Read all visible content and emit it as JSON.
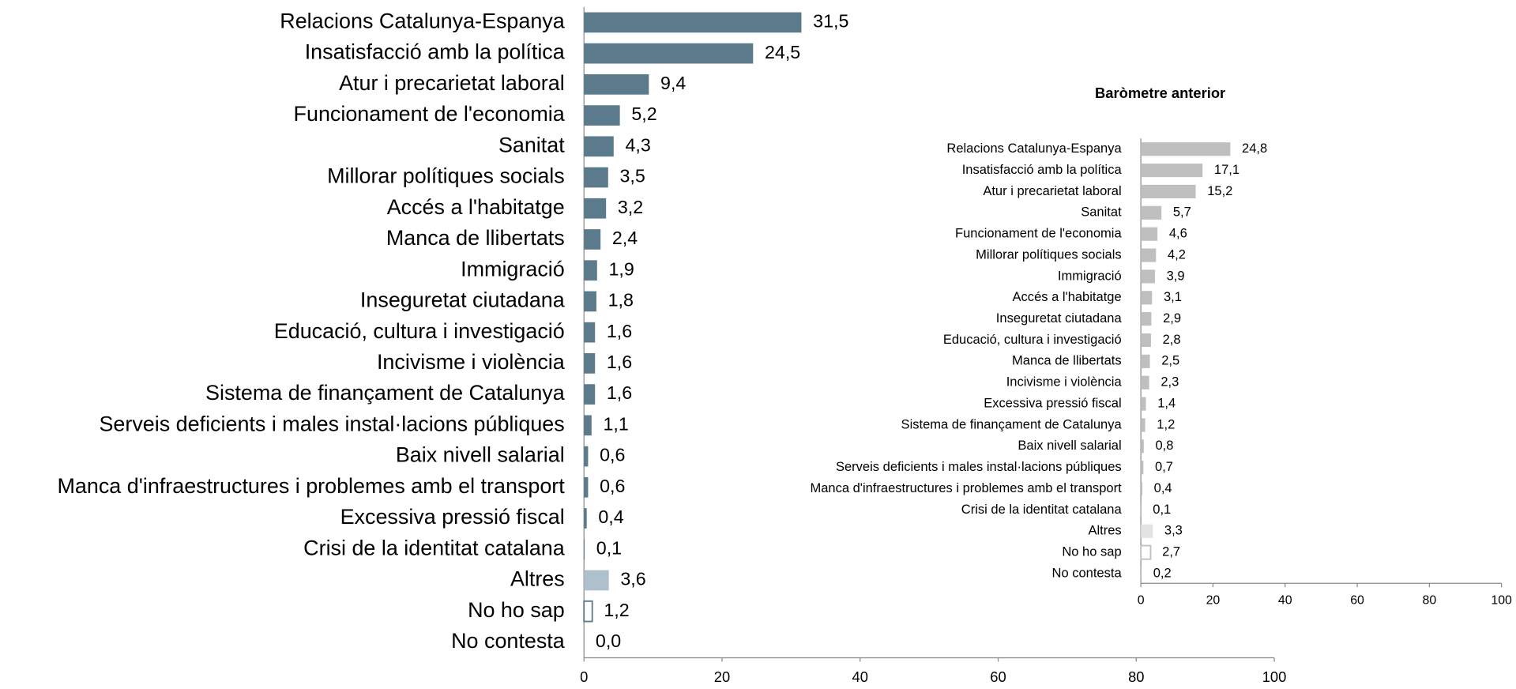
{
  "chart_data": [
    {
      "type": "bar",
      "orientation": "horizontal",
      "categories": [
        "Relacions Catalunya-Espanya",
        "Insatisfacció amb la política",
        "Atur i precarietat laboral",
        "Funcionament de l'economia",
        "Sanitat",
        "Millorar polítiques socials",
        "Accés a l'habitatge",
        "Manca de llibertats",
        "Immigració",
        "Inseguretat ciutadana",
        "Educació, cultura i investigació",
        "Incivisme i violència",
        "Sistema de finançament de Catalunya",
        "Serveis deficients i males instal·lacions públiques",
        "Baix nivell salarial",
        "Manca d'infraestructures i problemes amb el transport",
        "Excessiva pressió fiscal",
        "Crisi de la identitat catalana",
        "Altres",
        "No ho sap",
        "No contesta"
      ],
      "values": [
        31.5,
        24.5,
        9.4,
        5.2,
        4.3,
        3.5,
        3.2,
        2.4,
        1.9,
        1.8,
        1.6,
        1.6,
        1.6,
        1.1,
        0.6,
        0.6,
        0.4,
        0.1,
        3.6,
        1.2,
        0.0
      ],
      "value_labels": [
        "31,5",
        "24,5",
        "9,4",
        "5,2",
        "4,3",
        "3,5",
        "3,2",
        "2,4",
        "1,9",
        "1,8",
        "1,6",
        "1,6",
        "1,6",
        "1,1",
        "0,6",
        "0,6",
        "0,4",
        "0,1",
        "3,6",
        "1,2",
        "0,0"
      ],
      "colors": [
        "#5b7b8d",
        "#5b7b8d",
        "#5b7b8d",
        "#5b7b8d",
        "#5b7b8d",
        "#5b7b8d",
        "#5b7b8d",
        "#5b7b8d",
        "#5b7b8d",
        "#5b7b8d",
        "#5b7b8d",
        "#5b7b8d",
        "#5b7b8d",
        "#5b7b8d",
        "#5b7b8d",
        "#5b7b8d",
        "#5b7b8d",
        "#5b7b8d",
        "#adc0cb",
        "#ffffff",
        "#5b7b8d"
      ],
      "edgecolor": "#5b7b8d",
      "xlim": [
        0,
        100
      ],
      "xticks": [
        0,
        20,
        40,
        60,
        80,
        100
      ]
    },
    {
      "type": "bar",
      "orientation": "horizontal",
      "title": "Baròmetre anterior",
      "categories": [
        "Relacions Catalunya-Espanya",
        "Insatisfacció amb la política",
        "Atur i precarietat laboral",
        "Sanitat",
        "Funcionament de l'economia",
        "Millorar polítiques socials",
        "Immigració",
        "Accés a l'habitatge",
        "Inseguretat ciutadana",
        "Educació, cultura i investigació",
        "Manca de llibertats",
        "Incivisme i violència",
        "Excessiva pressió fiscal",
        "Sistema de finançament de Catalunya",
        "Baix nivell salarial",
        "Serveis deficients i males instal·lacions públiques",
        "Manca d'infraestructures i problemes amb el transport",
        "Crisi de la identitat catalana",
        "Altres",
        "No ho sap",
        "No contesta"
      ],
      "values": [
        24.8,
        17.1,
        15.2,
        5.7,
        4.6,
        4.2,
        3.9,
        3.1,
        2.9,
        2.8,
        2.5,
        2.3,
        1.4,
        1.2,
        0.8,
        0.7,
        0.4,
        0.1,
        3.3,
        2.7,
        0.2
      ],
      "value_labels": [
        "24,8",
        "17,1",
        "15,2",
        "5,7",
        "4,6",
        "4,2",
        "3,9",
        "3,1",
        "2,9",
        "2,8",
        "2,5",
        "2,3",
        "1,4",
        "1,2",
        "0,8",
        "0,7",
        "0,4",
        "0,1",
        "3,3",
        "2,7",
        "0,2"
      ],
      "colors": [
        "#bfbfbf",
        "#bfbfbf",
        "#bfbfbf",
        "#bfbfbf",
        "#bfbfbf",
        "#bfbfbf",
        "#bfbfbf",
        "#bfbfbf",
        "#bfbfbf",
        "#bfbfbf",
        "#bfbfbf",
        "#bfbfbf",
        "#bfbfbf",
        "#bfbfbf",
        "#bfbfbf",
        "#bfbfbf",
        "#bfbfbf",
        "#bfbfbf",
        "#e3e3e3",
        "#ffffff",
        "#bfbfbf"
      ],
      "edgecolor": "#bfbfbf",
      "xlim": [
        0,
        100
      ],
      "xticks": [
        0,
        20,
        40,
        60,
        80,
        100
      ]
    }
  ]
}
